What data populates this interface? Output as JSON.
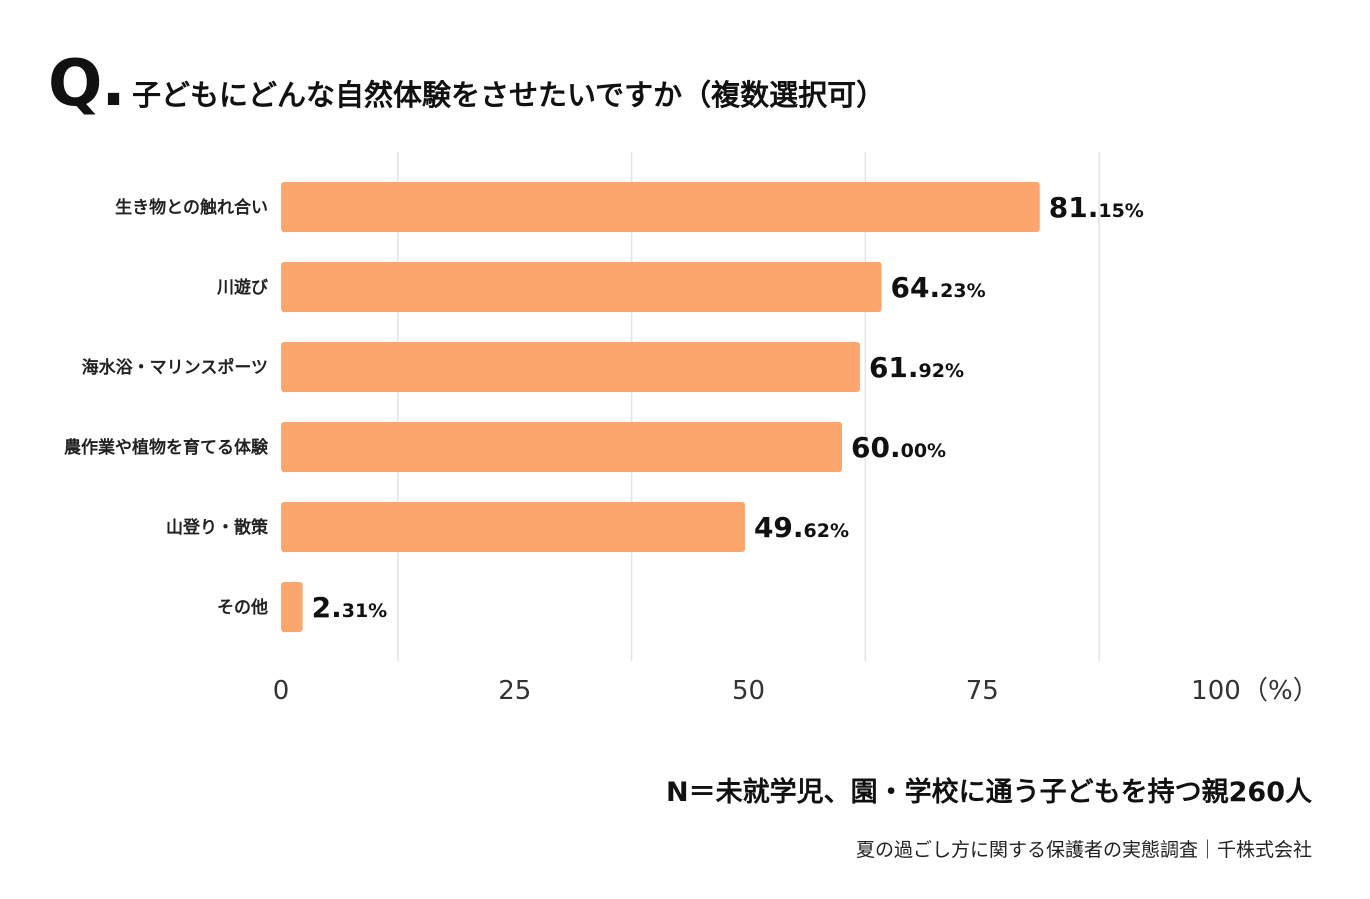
{
  "header": {
    "q_mark": "Q.",
    "question": "子どもにどんな自然体験をさせたいですか（複数選択可）"
  },
  "chart_data": {
    "type": "bar",
    "orientation": "horizontal",
    "title": "子どもにどんな自然体験をさせたいですか（複数選択可）",
    "categories": [
      "生き物との触れ合い",
      "川遊び",
      "海水浴・マリンスポーツ",
      "農作業や植物を育てる体験",
      "山登り・散策",
      "その他"
    ],
    "values": [
      81.15,
      64.23,
      61.92,
      60.0,
      49.62,
      2.31
    ],
    "value_labels": [
      {
        "int": "81.",
        "dec": "15%"
      },
      {
        "int": "64.",
        "dec": "23%"
      },
      {
        "int": "61.",
        "dec": "92%"
      },
      {
        "int": "60.",
        "dec": "00%"
      },
      {
        "int": "49.",
        "dec": "62%"
      },
      {
        "int": "2.",
        "dec": "31%"
      }
    ],
    "xlim": [
      0,
      100
    ],
    "x_ticks": [
      "0",
      "25",
      "50",
      "75",
      "100"
    ],
    "x_unit": "（%）",
    "xlabel": "",
    "ylabel": "",
    "grid": true,
    "bar_color": "#FCA56C"
  },
  "footer": {
    "sample": "N＝未就学児、園・学校に通う子どもを持つ親260人",
    "source": "夏の過ごし方に関する保護者の実態調査｜千株式会社"
  }
}
